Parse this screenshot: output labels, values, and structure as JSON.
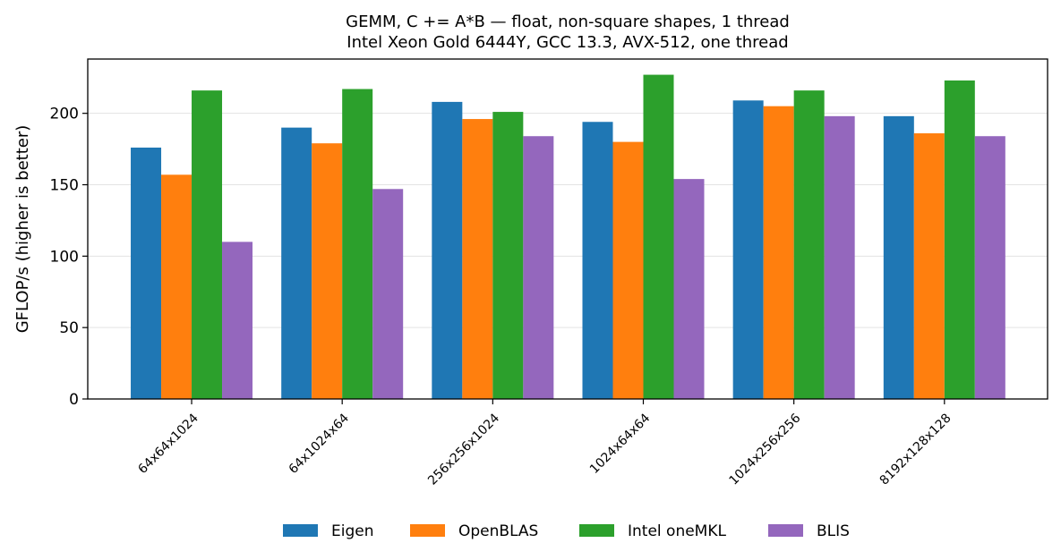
{
  "chart_data": {
    "type": "bar",
    "title": "GEMM, C += A*B — float, non-square shapes, 1 thread",
    "subtitle": "Intel Xeon Gold 6444Y, GCC 13.3, AVX-512, one thread",
    "xlabel": "",
    "ylabel": "GFLOP/s (higher is better)",
    "ylim": [
      0,
      238
    ],
    "yticks": [
      "0",
      "50",
      "100",
      "150",
      "200"
    ],
    "grid": "horizontal",
    "legend_position": "bottom-center",
    "categories": [
      "64x64x1024",
      "64x1024x64",
      "256x256x1024",
      "1024x64x64",
      "1024x256x256",
      "8192x128x128"
    ],
    "series": [
      {
        "name": "Eigen",
        "color": "#1f77b4",
        "values": [
          176,
          190,
          208,
          194,
          209,
          198
        ]
      },
      {
        "name": "OpenBLAS",
        "color": "#ff7f0e",
        "values": [
          157,
          179,
          196,
          180,
          205,
          186
        ]
      },
      {
        "name": "Intel oneMKL",
        "color": "#2ca02c",
        "values": [
          216,
          217,
          201,
          227,
          216,
          223
        ]
      },
      {
        "name": "BLIS",
        "color": "#9467bd",
        "values": [
          110,
          147,
          184,
          154,
          198,
          184
        ]
      }
    ]
  }
}
